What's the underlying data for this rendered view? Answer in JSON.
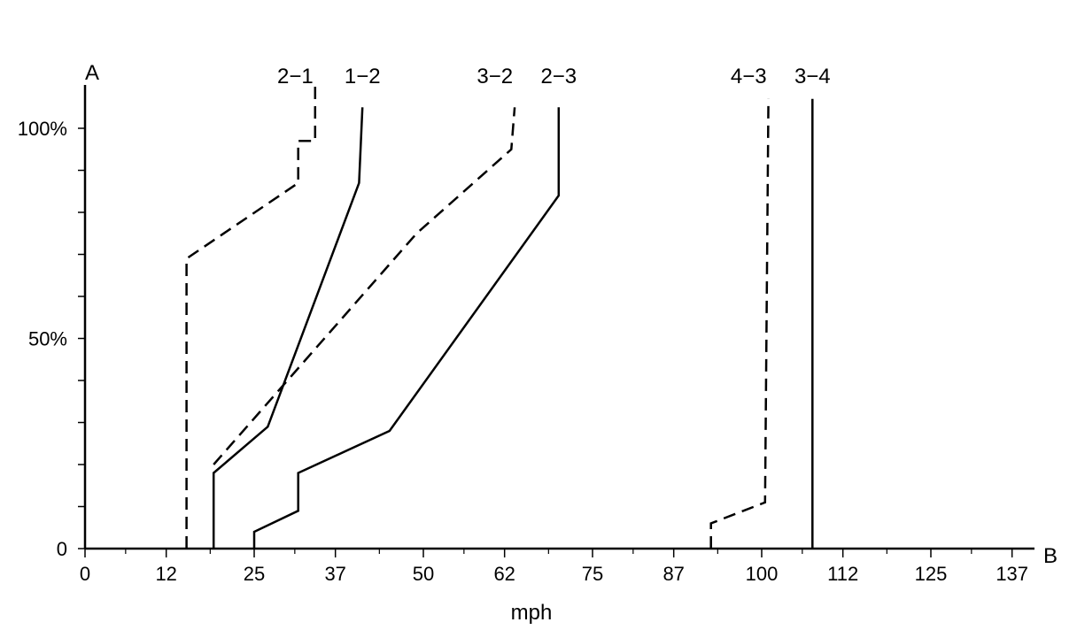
{
  "chart_data": {
    "type": "line",
    "corner_label_top": "A",
    "corner_label_right": "B",
    "xlabel": "mph",
    "ylabel": "",
    "x_ticks": [
      "0",
      "12",
      "25",
      "37",
      "50",
      "62",
      "75",
      "87",
      "100",
      "112",
      "125",
      "137"
    ],
    "y_ticks": [
      "0",
      "50%",
      "100%"
    ],
    "xlim": [
      0,
      143
    ],
    "ylim": [
      0,
      110
    ],
    "grid": false,
    "series": [
      {
        "name": "2-1",
        "style": "dashed",
        "color": "#000000",
        "points": [
          [
            15,
            0
          ],
          [
            15,
            69
          ],
          [
            31.5,
            87
          ],
          [
            31.5,
            97
          ],
          [
            34,
            97
          ],
          [
            34,
            110
          ]
        ]
      },
      {
        "name": "1-2",
        "style": "solid",
        "color": "#000000",
        "points": [
          [
            19,
            0
          ],
          [
            19,
            18
          ],
          [
            27,
            29
          ],
          [
            40.5,
            87
          ],
          [
            41,
            105
          ]
        ]
      },
      {
        "name": "3-2",
        "style": "dashed",
        "color": "#000000",
        "points": [
          [
            19,
            20
          ],
          [
            49,
            75
          ],
          [
            63,
            95
          ],
          [
            63.5,
            105
          ]
        ]
      },
      {
        "name": "2-3",
        "style": "solid",
        "color": "#000000",
        "points": [
          [
            25,
            0
          ],
          [
            25,
            4
          ],
          [
            31.5,
            9
          ],
          [
            31.5,
            18
          ],
          [
            45,
            28
          ],
          [
            70,
            84
          ],
          [
            70,
            105
          ]
        ]
      },
      {
        "name": "4-3",
        "style": "dashed",
        "color": "#000000",
        "points": [
          [
            92.5,
            0
          ],
          [
            92.5,
            6
          ],
          [
            100.5,
            11
          ],
          [
            101,
            107
          ]
        ]
      },
      {
        "name": "3-4",
        "style": "solid",
        "color": "#000000",
        "points": [
          [
            107.5,
            0
          ],
          [
            107.5,
            107
          ]
        ]
      }
    ]
  }
}
